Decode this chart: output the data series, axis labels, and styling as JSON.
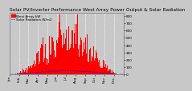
{
  "title": "Solar PV/Inverter Performance West Array Power Output & Solar Radiation",
  "legend_label1": "West Array kW",
  "legend_label2": "Solar Radiation W/m2",
  "background_color": "#c8c8c8",
  "plot_bg_color": "#c8c8c8",
  "grid_color": "#ffffff",
  "bar_color": "#ff0000",
  "line_color": "#0000ff",
  "ylim": [
    0,
    850
  ],
  "title_fontsize": 4.2,
  "tick_fontsize": 3.0,
  "legend_fontsize": 3.0
}
